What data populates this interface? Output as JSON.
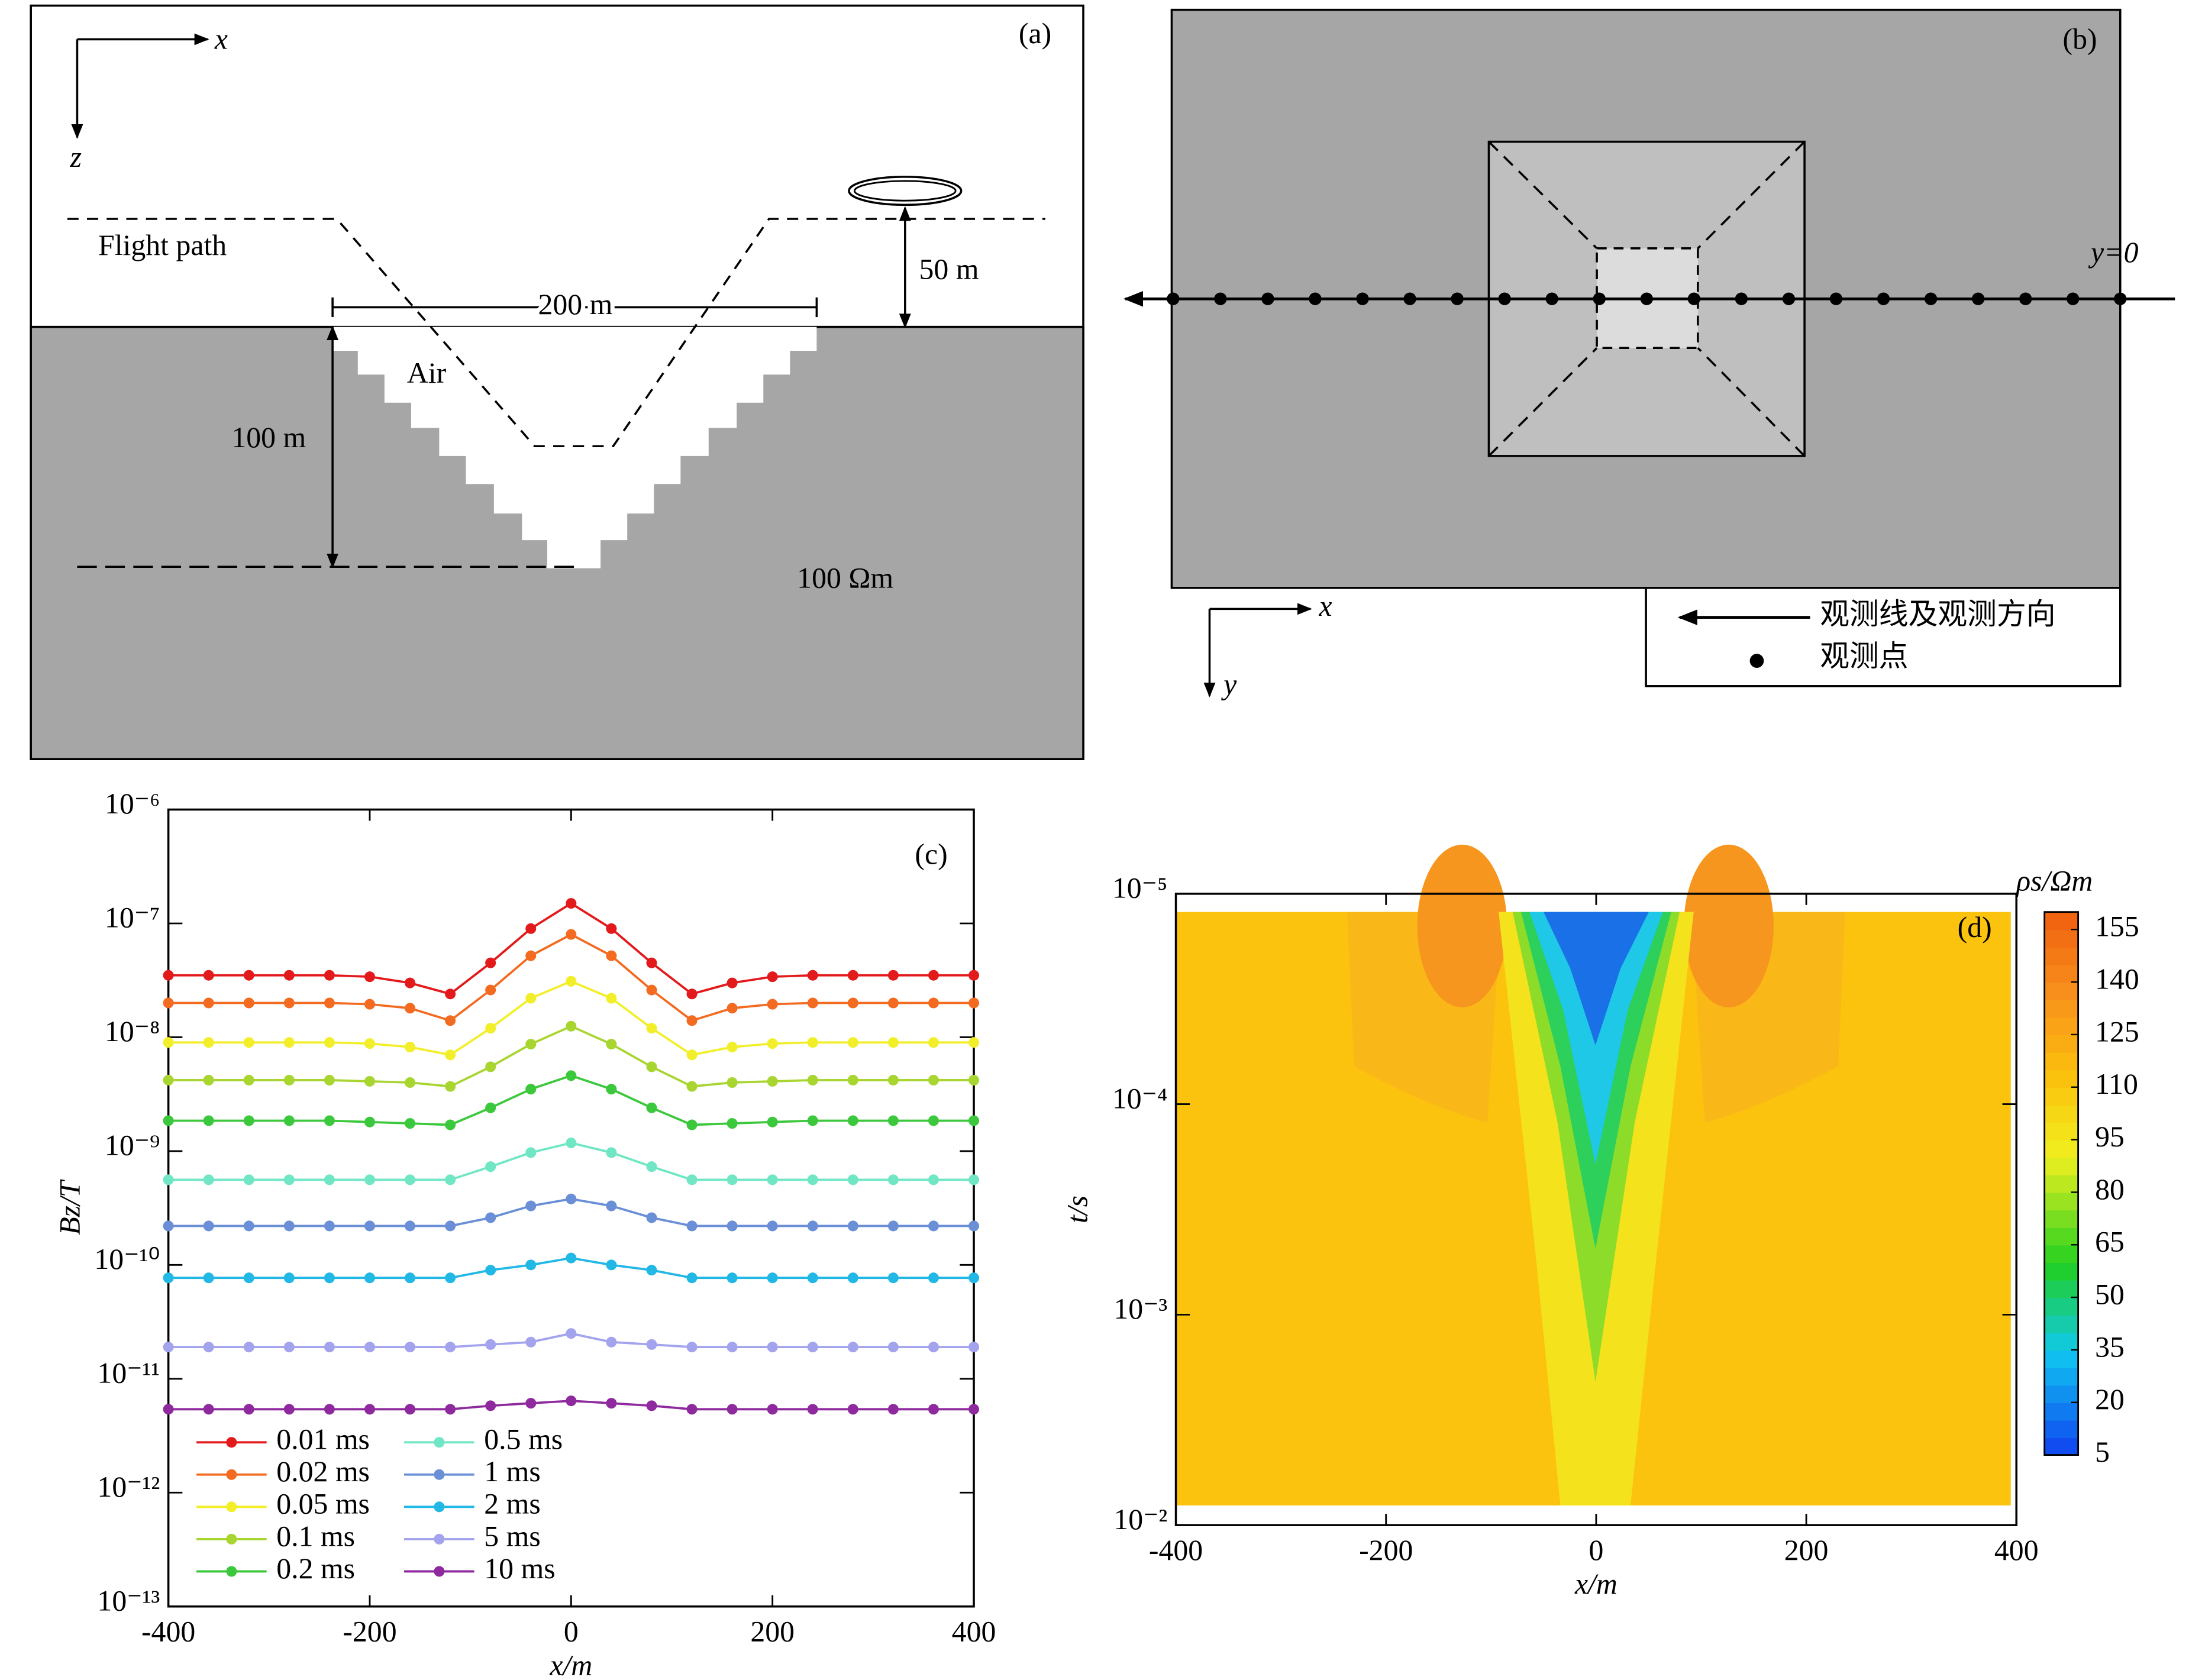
{
  "diagrams": {
    "a": {
      "panel_label": "(a)",
      "x_axis": "x",
      "z_axis": "z",
      "flight_path": "Flight path",
      "width_label": "200 m",
      "height_label": "50 m",
      "air": "Air",
      "depth_label": "100 m",
      "resistivity": "100 Ωm"
    },
    "b": {
      "panel_label": "(b)",
      "line_label": "y=0",
      "x_axis": "x",
      "y_axis": "y",
      "legend_line": "观测线及观测方向",
      "legend_point": "观测点"
    }
  },
  "chart_data": [
    {
      "type": "line",
      "panel_label": "(c)",
      "xlabel": "x/m",
      "ylabel": "Bz/T",
      "log_y": true,
      "legend_position": "lower left",
      "marker": "circle",
      "x": [
        -400,
        -360,
        -320,
        -280,
        -240,
        -200,
        -160,
        -120,
        -80,
        -40,
        0,
        40,
        80,
        120,
        160,
        200,
        240,
        280,
        320,
        360,
        400
      ],
      "xlim": [
        -400,
        400
      ],
      "xticks": [
        -400,
        -200,
        0,
        200,
        400
      ],
      "ylim": [
        1e-13,
        1e-06
      ],
      "yticks": [
        {
          "value": 1e-13,
          "label": "10⁻¹³"
        },
        {
          "value": 1e-12,
          "label": "10⁻¹²"
        },
        {
          "value": 1e-11,
          "label": "10⁻¹¹"
        },
        {
          "value": 1e-10,
          "label": "10⁻¹⁰"
        },
        {
          "value": 1e-09,
          "label": "10⁻⁹"
        },
        {
          "value": 1e-08,
          "label": "10⁻⁸"
        },
        {
          "value": 1e-07,
          "label": "10⁻⁷"
        },
        {
          "value": 1e-06,
          "label": "10⁻⁶"
        }
      ],
      "series": [
        {
          "name": "0.01 ms",
          "color": "#e31a1c",
          "values": [
            3.5e-08,
            3.5e-08,
            3.5e-08,
            3.5e-08,
            3.5e-08,
            3.4e-08,
            3e-08,
            2.4e-08,
            4.5e-08,
            9e-08,
            1.5e-07,
            9e-08,
            4.5e-08,
            2.4e-08,
            3e-08,
            3.4e-08,
            3.5e-08,
            3.5e-08,
            3.5e-08,
            3.5e-08,
            3.5e-08
          ]
        },
        {
          "name": "0.02 ms",
          "color": "#f36b21",
          "values": [
            2e-08,
            2e-08,
            2e-08,
            2e-08,
            2e-08,
            1.95e-08,
            1.8e-08,
            1.4e-08,
            2.6e-08,
            5.2e-08,
            8e-08,
            5.2e-08,
            2.6e-08,
            1.4e-08,
            1.8e-08,
            1.95e-08,
            2e-08,
            2e-08,
            2e-08,
            2e-08,
            2e-08
          ]
        },
        {
          "name": "0.05 ms",
          "color": "#f2ef2a",
          "values": [
            9e-09,
            9e-09,
            9e-09,
            9e-09,
            9e-09,
            8.8e-09,
            8.2e-09,
            7e-09,
            1.2e-08,
            2.2e-08,
            3.1e-08,
            2.2e-08,
            1.2e-08,
            7e-09,
            8.2e-09,
            8.8e-09,
            9e-09,
            9e-09,
            9e-09,
            9e-09,
            9e-09
          ]
        },
        {
          "name": "0.1 ms",
          "color": "#a8d530",
          "values": [
            4.2e-09,
            4.2e-09,
            4.2e-09,
            4.2e-09,
            4.2e-09,
            4.1e-09,
            4e-09,
            3.7e-09,
            5.5e-09,
            8.7e-09,
            1.25e-08,
            8.7e-09,
            5.5e-09,
            3.7e-09,
            4e-09,
            4.1e-09,
            4.2e-09,
            4.2e-09,
            4.2e-09,
            4.2e-09,
            4.2e-09
          ]
        },
        {
          "name": "0.2 ms",
          "color": "#3cc83c",
          "values": [
            1.85e-09,
            1.85e-09,
            1.85e-09,
            1.85e-09,
            1.85e-09,
            1.8e-09,
            1.75e-09,
            1.7e-09,
            2.4e-09,
            3.5e-09,
            4.6e-09,
            3.5e-09,
            2.4e-09,
            1.7e-09,
            1.75e-09,
            1.8e-09,
            1.85e-09,
            1.85e-09,
            1.85e-09,
            1.85e-09,
            1.85e-09
          ]
        },
        {
          "name": "0.5 ms",
          "color": "#70e6c4",
          "values": [
            5.6e-10,
            5.6e-10,
            5.6e-10,
            5.6e-10,
            5.6e-10,
            5.6e-10,
            5.6e-10,
            5.6e-10,
            7.3e-10,
            9.7e-10,
            1.18e-09,
            9.7e-10,
            7.3e-10,
            5.6e-10,
            5.6e-10,
            5.6e-10,
            5.6e-10,
            5.6e-10,
            5.6e-10,
            5.6e-10,
            5.6e-10
          ]
        },
        {
          "name": "1 ms",
          "color": "#6a8fd6",
          "values": [
            2.2e-10,
            2.2e-10,
            2.2e-10,
            2.2e-10,
            2.2e-10,
            2.2e-10,
            2.2e-10,
            2.2e-10,
            2.6e-10,
            3.3e-10,
            3.8e-10,
            3.3e-10,
            2.6e-10,
            2.2e-10,
            2.2e-10,
            2.2e-10,
            2.2e-10,
            2.2e-10,
            2.2e-10,
            2.2e-10,
            2.2e-10
          ]
        },
        {
          "name": "2 ms",
          "color": "#22b8e6",
          "values": [
            7.7e-11,
            7.7e-11,
            7.7e-11,
            7.7e-11,
            7.7e-11,
            7.7e-11,
            7.7e-11,
            7.7e-11,
            9e-11,
            1e-10,
            1.15e-10,
            1e-10,
            9e-11,
            7.7e-11,
            7.7e-11,
            7.7e-11,
            7.7e-11,
            7.7e-11,
            7.7e-11,
            7.7e-11,
            7.7e-11
          ]
        },
        {
          "name": "5 ms",
          "color": "#a3a3ee",
          "values": [
            1.9e-11,
            1.9e-11,
            1.9e-11,
            1.9e-11,
            1.9e-11,
            1.9e-11,
            1.9e-11,
            1.9e-11,
            2e-11,
            2.1e-11,
            2.5e-11,
            2.1e-11,
            2e-11,
            1.9e-11,
            1.9e-11,
            1.9e-11,
            1.9e-11,
            1.9e-11,
            1.9e-11,
            1.9e-11,
            1.9e-11
          ]
        },
        {
          "name": "10 ms",
          "color": "#8e2a9e",
          "values": [
            5.4e-12,
            5.4e-12,
            5.4e-12,
            5.4e-12,
            5.4e-12,
            5.4e-12,
            5.4e-12,
            5.4e-12,
            5.8e-12,
            6.1e-12,
            6.4e-12,
            6.1e-12,
            5.8e-12,
            5.4e-12,
            5.4e-12,
            5.4e-12,
            5.4e-12,
            5.4e-12,
            5.4e-12,
            5.4e-12,
            5.4e-12
          ]
        }
      ]
    },
    {
      "type": "contour",
      "panel_label": "(d)",
      "xlabel": "x/m",
      "ylabel": "t/s",
      "log_y": true,
      "xlim": [
        -400,
        400
      ],
      "xticks": [
        -400,
        -200,
        0,
        200,
        400
      ],
      "ylim": [
        0.01,
        1e-05
      ],
      "yticks": [
        {
          "value": 0.01,
          "label": "10⁻²"
        },
        {
          "value": 0.001,
          "label": "10⁻³"
        },
        {
          "value": 0.0001,
          "label": "10⁻⁴"
        },
        {
          "value": 1e-05,
          "label": "10⁻⁵"
        }
      ],
      "colorbar": {
        "label": "ρs/Ωm",
        "lim": [
          5,
          160
        ],
        "ticks": [
          5,
          20,
          35,
          50,
          65,
          80,
          95,
          110,
          125,
          140,
          155
        ]
      }
    }
  ]
}
